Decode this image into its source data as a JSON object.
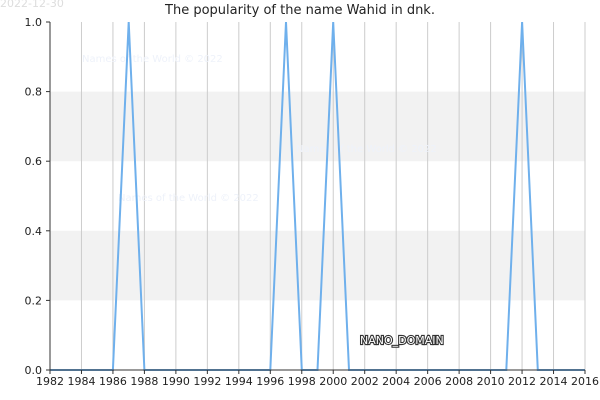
{
  "header": {
    "date_stamp": "2022-12-30"
  },
  "watermarks": [
    "Names of the World © 2022",
    "Names of the World © 2022",
    "Names of the World © 2022"
  ],
  "overlay_label": "NANO_DOMAIN",
  "colors": {
    "line": "#6fb0ec",
    "band": "#f2f2f2",
    "grid": "#cccccc",
    "axis": "#333333"
  },
  "chart_data": {
    "type": "line",
    "title": "The popularity of the name Wahid in dnk.",
    "xlabel": "",
    "ylabel": "",
    "xlim": [
      1982,
      2016
    ],
    "ylim": [
      0,
      1.0
    ],
    "grid": true,
    "x_ticks": [
      1982,
      1984,
      1986,
      1988,
      1990,
      1992,
      1994,
      1996,
      1998,
      2000,
      2002,
      2004,
      2006,
      2008,
      2010,
      2012,
      2014,
      2016
    ],
    "y_ticks": [
      0.0,
      0.2,
      0.4,
      0.6,
      0.8,
      1.0
    ],
    "series": [
      {
        "x": [
          1982,
          1983,
          1984,
          1985,
          1986,
          1987,
          1988,
          1989,
          1990,
          1991,
          1992,
          1993,
          1994,
          1995,
          1996,
          1997,
          1998,
          1999,
          2000,
          2001,
          2002,
          2003,
          2004,
          2005,
          2006,
          2007,
          2008,
          2009,
          2010,
          2011,
          2012,
          2013,
          2014,
          2015,
          2016
        ],
        "values": [
          0,
          0,
          0,
          0,
          0,
          1,
          0,
          0,
          0,
          0,
          0,
          0,
          0,
          0,
          0,
          1,
          0,
          0,
          1,
          0,
          0,
          0,
          0,
          0,
          0,
          0,
          0,
          0,
          0,
          0,
          1,
          0,
          0,
          0,
          0
        ]
      }
    ]
  }
}
